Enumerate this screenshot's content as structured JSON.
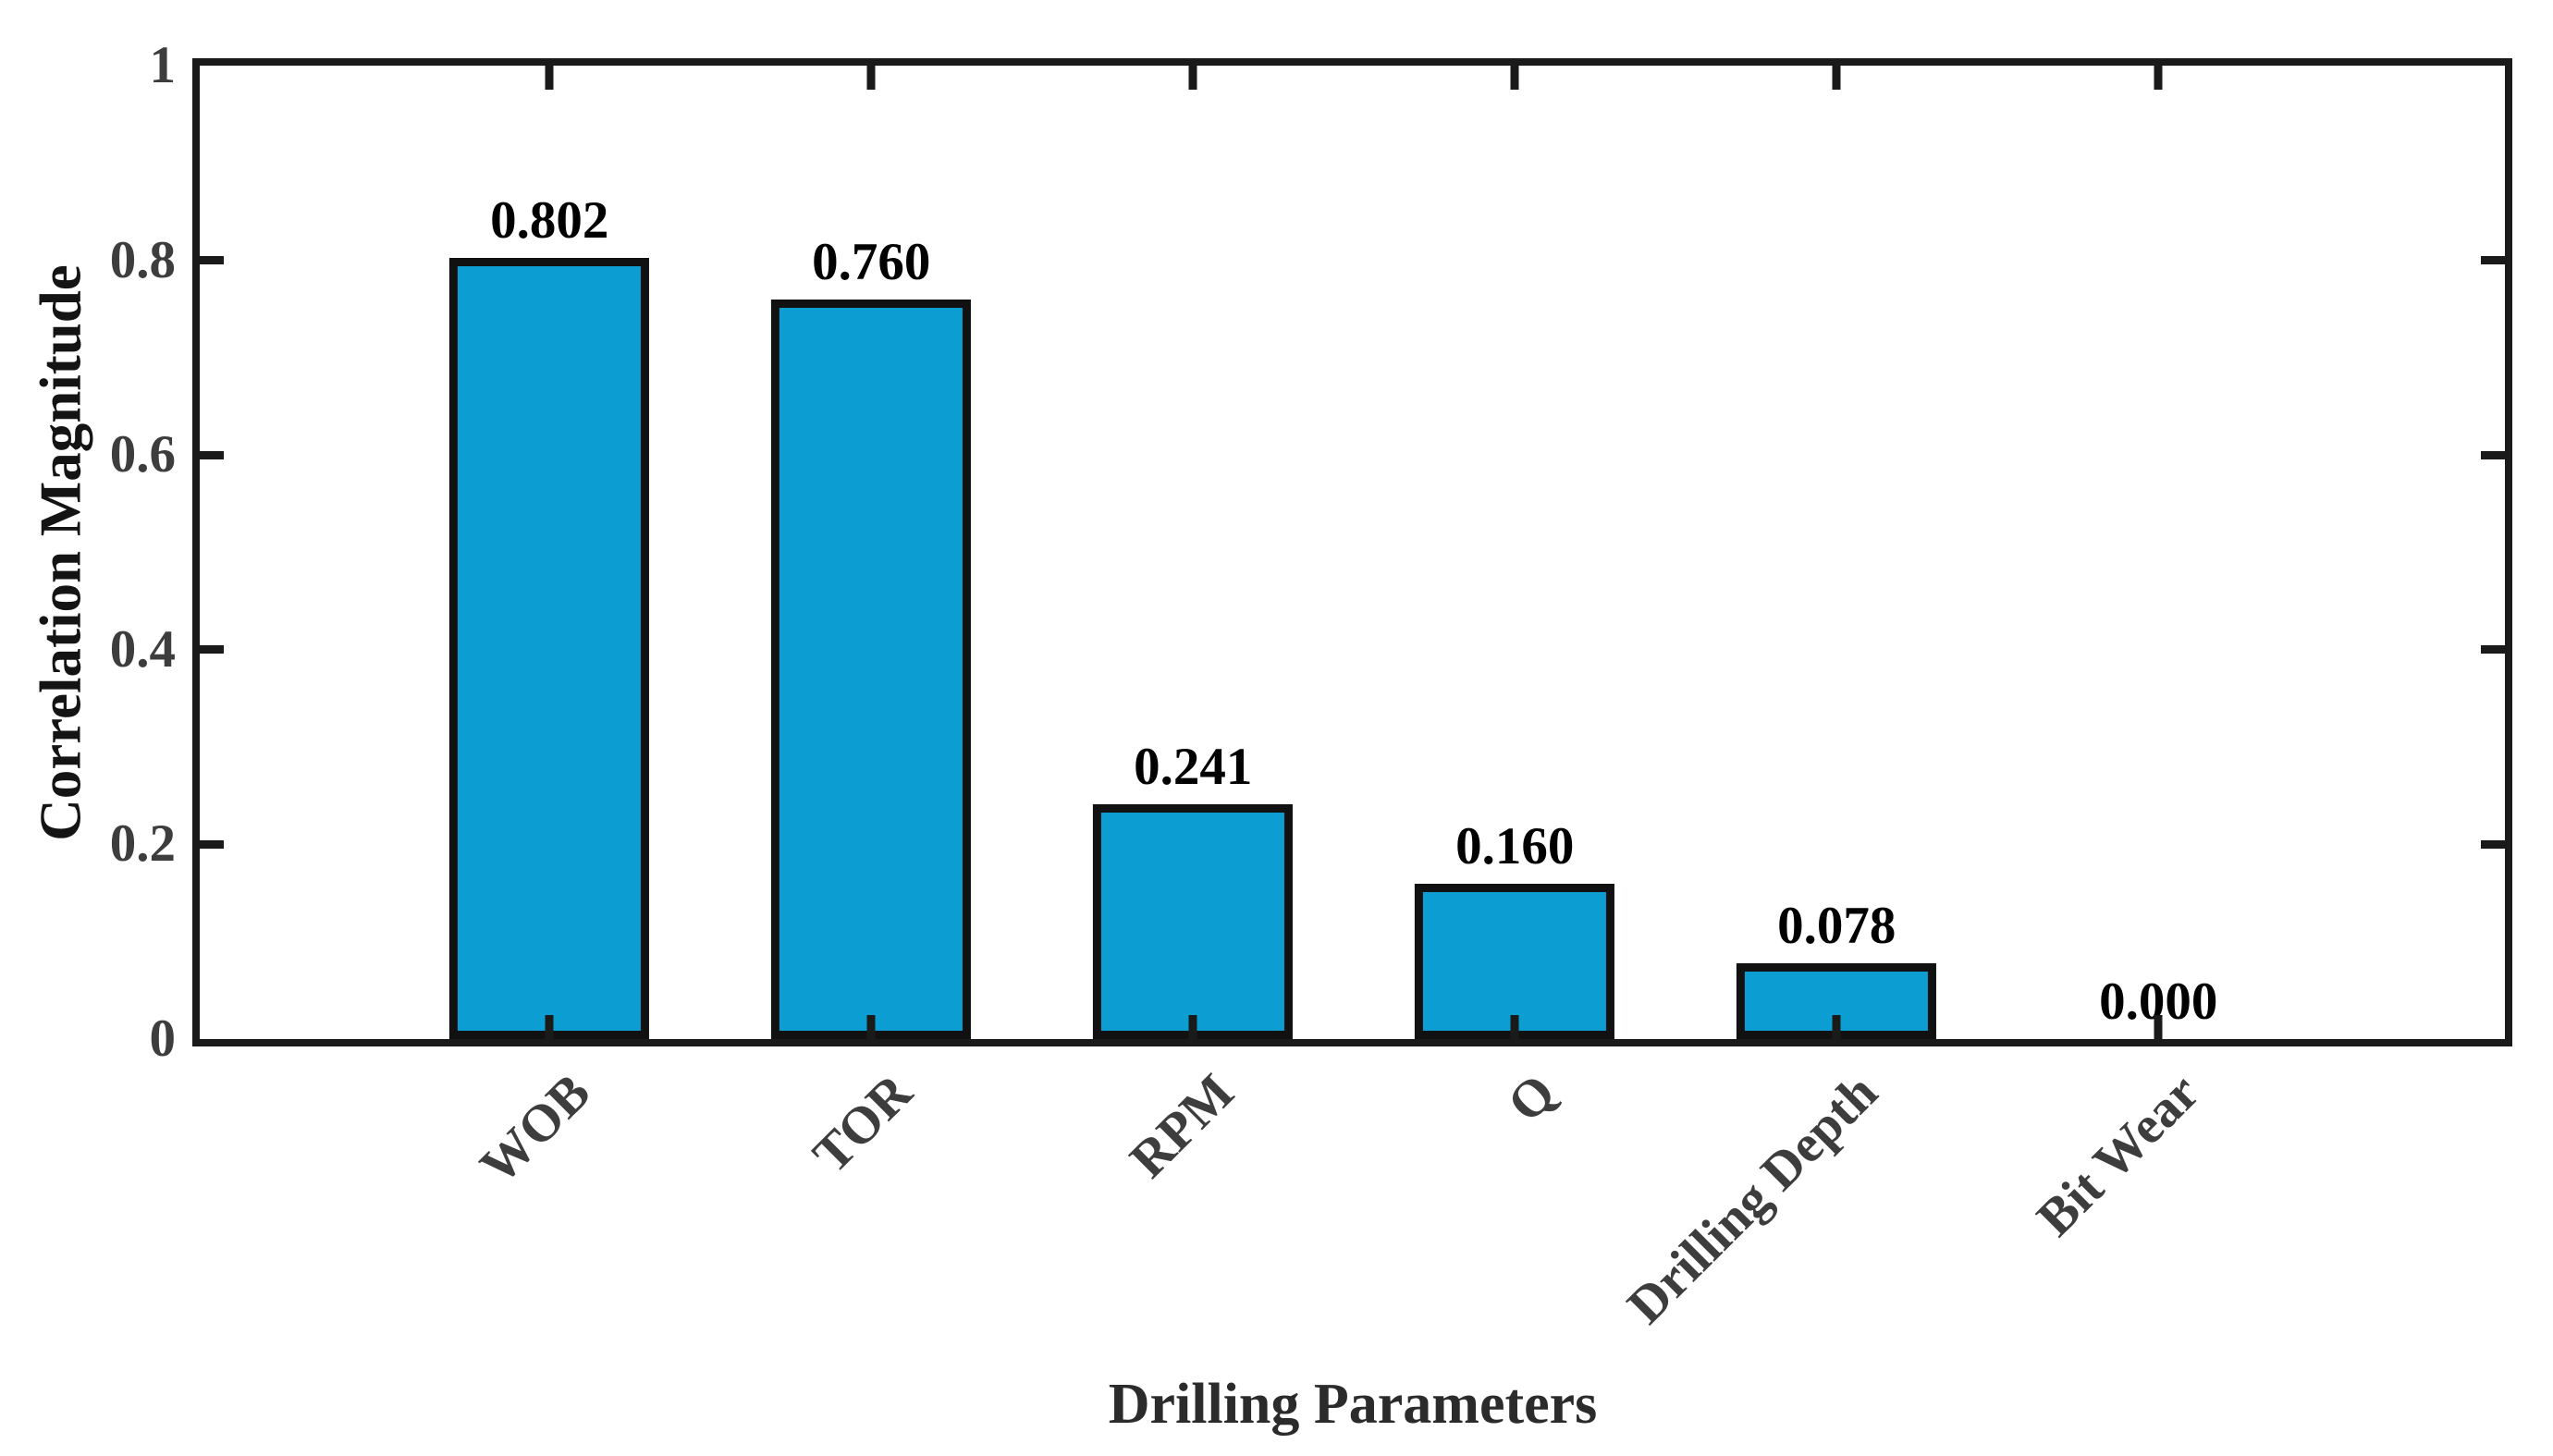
{
  "chart_data": {
    "type": "bar",
    "categories": [
      "WOB",
      "TOR",
      "RPM",
      "Q",
      "Drilling Depth",
      "Bit Wear"
    ],
    "values": [
      0.802,
      0.76,
      0.241,
      0.16,
      0.078,
      0.0
    ],
    "value_labels": [
      "0.802",
      "0.760",
      "0.241",
      "0.160",
      "0.078",
      "0.000"
    ],
    "title": "",
    "xlabel": "Drilling Parameters",
    "ylabel": "Correlation Magnitude",
    "ylim": [
      0,
      1
    ],
    "yticks": [
      {
        "v": 0.0,
        "label": "0"
      },
      {
        "v": 0.2,
        "label": "0.2"
      },
      {
        "v": 0.4,
        "label": "0.4"
      },
      {
        "v": 0.6,
        "label": "0.6"
      },
      {
        "v": 0.8,
        "label": "0.8"
      },
      {
        "v": 1.0,
        "label": "1"
      }
    ],
    "grid": false,
    "legend": null,
    "bar_fill_color": "#0c9dd3",
    "bar_edge_color": "#111111",
    "axis_color": "#1a1a1a",
    "tick_label_color": "#3d3d3d",
    "value_label_color": "#000000"
  }
}
